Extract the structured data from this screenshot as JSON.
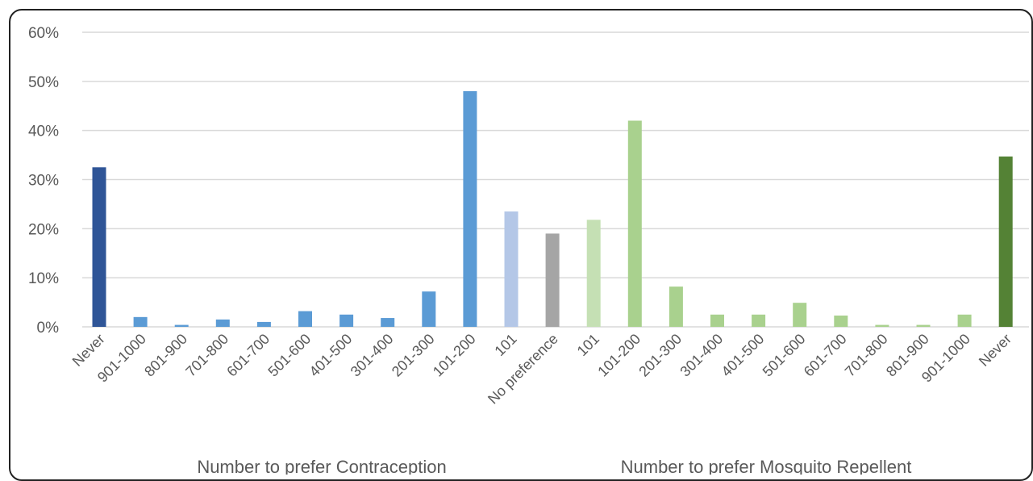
{
  "chart_data": {
    "type": "bar",
    "categories": [
      "Never",
      "901-1000",
      "801-900",
      "701-800",
      "601-700",
      "501-600",
      "401-500",
      "301-400",
      "201-300",
      "101-200",
      "101",
      "No preference",
      "101",
      "101-200",
      "201-300",
      "301-400",
      "401-500",
      "501-600",
      "601-700",
      "701-800",
      "801-900",
      "901-1000",
      "Never"
    ],
    "values": [
      32.5,
      2.0,
      0.4,
      1.5,
      1.0,
      3.2,
      2.5,
      1.8,
      7.2,
      48.0,
      23.5,
      19.0,
      21.8,
      42.0,
      8.2,
      2.5,
      2.5,
      4.9,
      2.3,
      0.4,
      0.4,
      2.5,
      34.7
    ],
    "colors": [
      "#2f5597",
      "#5b9bd5",
      "#5b9bd5",
      "#5b9bd5",
      "#5b9bd5",
      "#5b9bd5",
      "#5b9bd5",
      "#5b9bd5",
      "#5b9bd5",
      "#5b9bd5",
      "#b4c7e7",
      "#a5a5a5",
      "#c5e0b4",
      "#a9d18e",
      "#a9d18e",
      "#a9d18e",
      "#a9d18e",
      "#a9d18e",
      "#a9d18e",
      "#a9d18e",
      "#a9d18e",
      "#a9d18e",
      "#548235"
    ],
    "y_ticks": [
      "0%",
      "10%",
      "20%",
      "30%",
      "40%",
      "50%",
      "60%"
    ],
    "ylim": [
      0,
      60
    ],
    "group_labels": [
      "Number to prefer Contraception",
      "Number to prefer Mosquito Repellent"
    ],
    "grid": true,
    "legend": "none"
  }
}
